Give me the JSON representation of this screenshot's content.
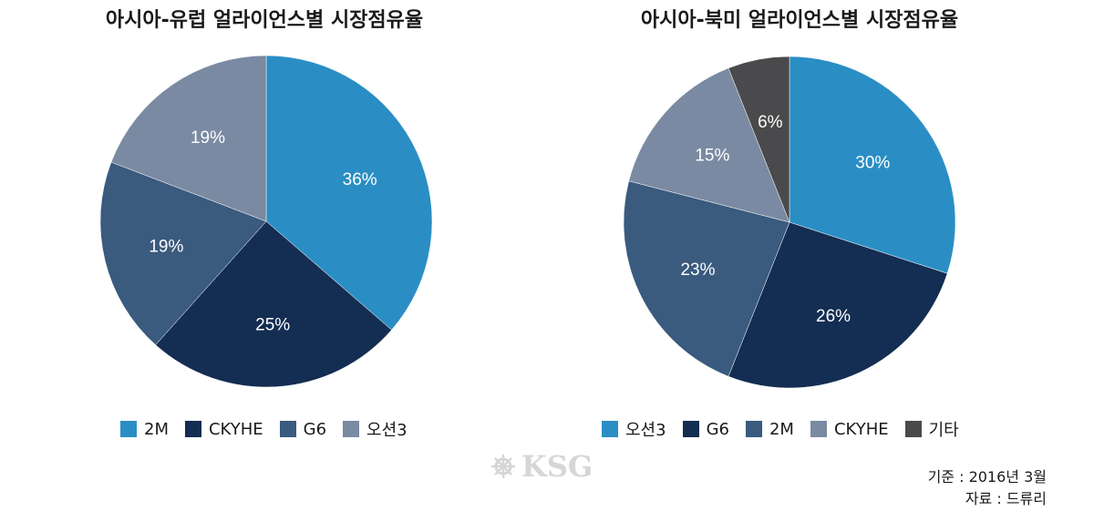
{
  "chart_data": [
    {
      "type": "pie",
      "title": "아시아-유럽 얼라이언스별 시장점유율",
      "labels": [
        "2M",
        "CKYHE",
        "G6",
        "오션3"
      ],
      "values": [
        36,
        25,
        19,
        19
      ],
      "value_labels": [
        "36%",
        "25%",
        "19%",
        "19%"
      ],
      "colors": [
        "#2a8ec4",
        "#142d52",
        "#3a5a7e",
        "#7a8aa2"
      ],
      "legend": "bottom"
    },
    {
      "type": "pie",
      "title": "아시아-북미 얼라이언스별 시장점유율",
      "labels": [
        "오션3",
        "G6",
        "2M",
        "CKYHE",
        "기타"
      ],
      "values": [
        30,
        26,
        23,
        15,
        6
      ],
      "value_labels": [
        "30%",
        "26%",
        "23%",
        "15%",
        "6%"
      ],
      "colors": [
        "#2a8ec4",
        "#142d52",
        "#3a5a7e",
        "#7a8aa2",
        "#4a4a4c"
      ],
      "legend": "bottom"
    }
  ],
  "watermark": "KSG",
  "source": {
    "date_line": "기준 : 2016년 3월",
    "source_line": "자료 : 드류리"
  }
}
